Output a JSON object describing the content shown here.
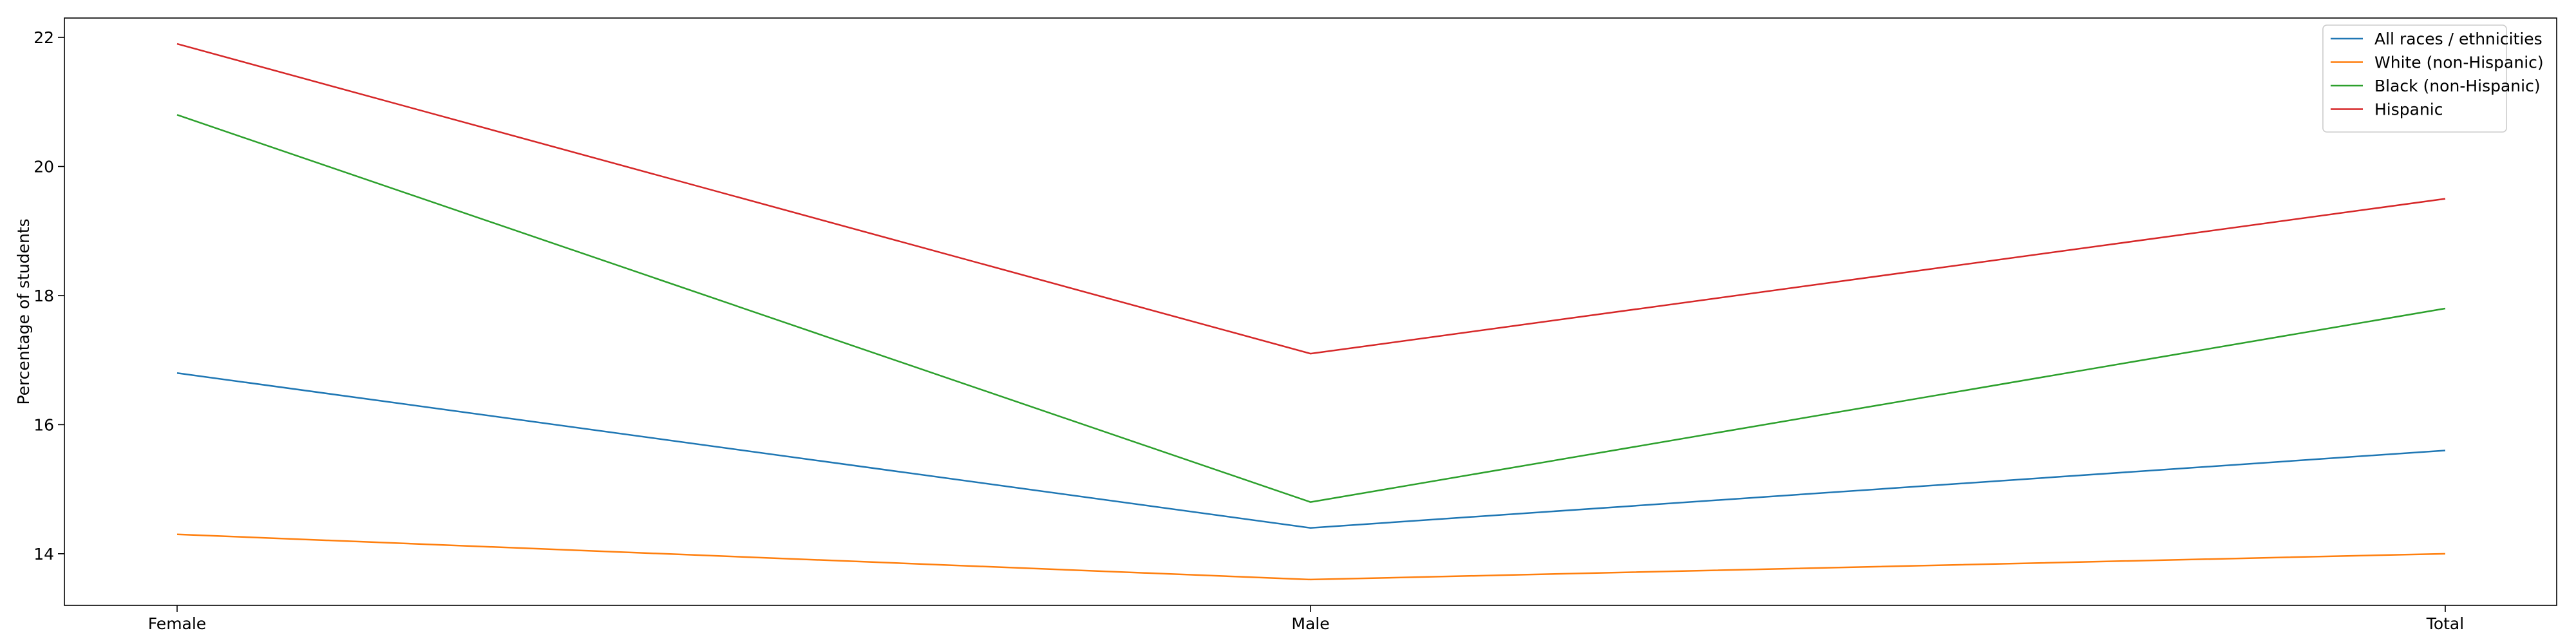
{
  "chart_data": {
    "type": "line",
    "title": "",
    "xlabel": "",
    "ylabel": "Percentage of students",
    "categories": [
      "Female",
      "Male",
      "Total"
    ],
    "ylim": [
      13.2,
      22.3
    ],
    "yticks": [
      14,
      16,
      18,
      20,
      22
    ],
    "grid": false,
    "legend_position": "top-right",
    "series": [
      {
        "name": "All races / ethnicities",
        "color": "#1f77b4",
        "values": [
          16.8,
          14.4,
          15.6
        ]
      },
      {
        "name": "White (non-Hispanic)",
        "color": "#ff7f0e",
        "values": [
          14.3,
          13.6,
          14.0
        ]
      },
      {
        "name": "Black (non-Hispanic)",
        "color": "#2ca02c",
        "values": [
          20.8,
          14.8,
          17.8
        ]
      },
      {
        "name": "Hispanic",
        "color": "#d62728",
        "values": [
          21.9,
          17.1,
          19.5
        ]
      }
    ]
  }
}
